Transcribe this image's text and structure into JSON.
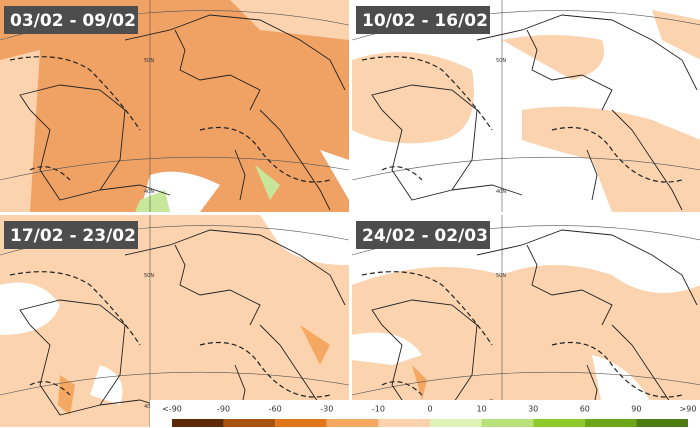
{
  "panels": [
    {
      "title": "03/02 - 09/02"
    },
    {
      "title": "10/02 - 16/02"
    },
    {
      "title": "17/02 - 23/02"
    },
    {
      "title": "24/02 - 02/03"
    }
  ],
  "latitude_labels": [
    "50N",
    "40N"
  ],
  "legend": {
    "labels": [
      "<-90",
      "-90",
      "-60",
      "-30",
      "-10",
      "0",
      "10",
      "30",
      "60",
      "90",
      ">90"
    ],
    "colors": [
      "#5e2a06",
      "#a8520f",
      "#e0761a",
      "#f4a862",
      "#fbd3ae",
      "#dff2b8",
      "#b9e27a",
      "#8fcb2d",
      "#6ea61a",
      "#4d7c12"
    ]
  }
}
